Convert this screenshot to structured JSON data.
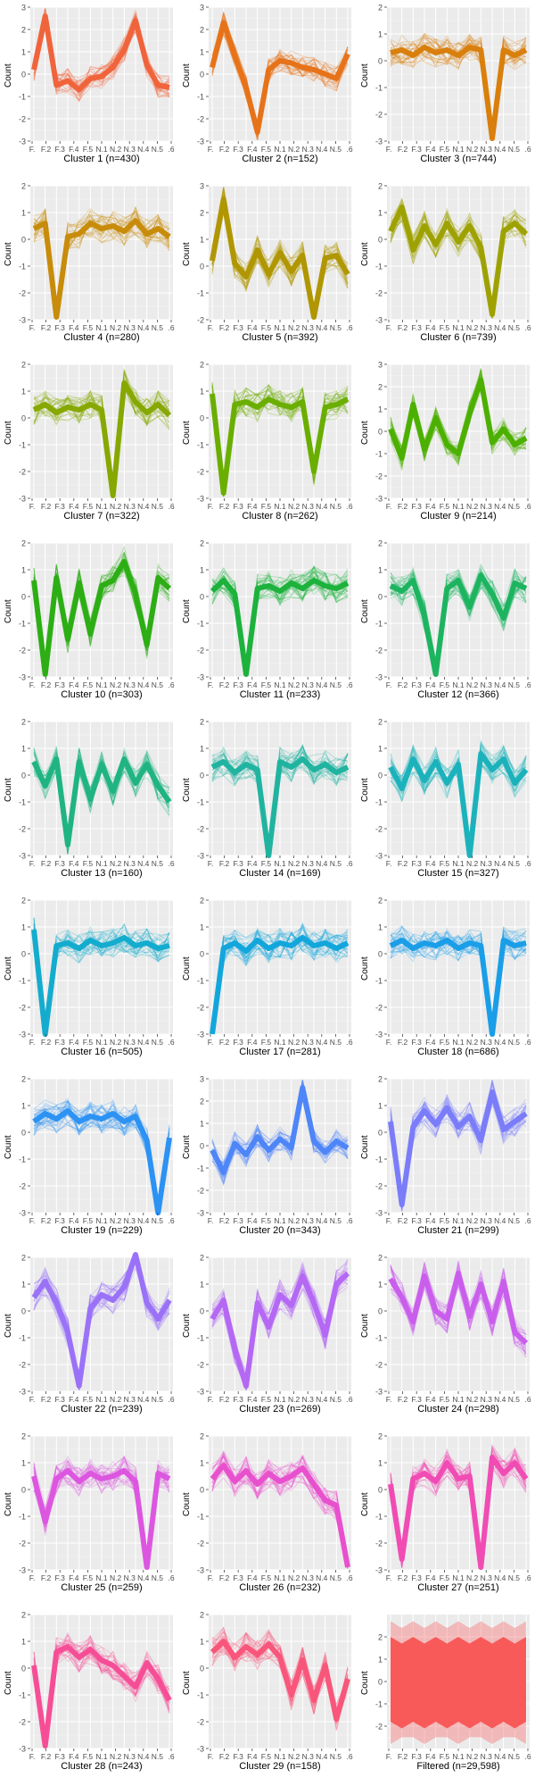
{
  "chart_data": [
    {
      "type": "line",
      "title": "Cluster 1 (n=430)",
      "ylabel": "Count",
      "ylim": [
        -3,
        3
      ],
      "yticks": [
        3,
        2,
        1,
        0,
        -1,
        -2,
        -3
      ],
      "x_ticklabels": [
        "F.",
        "F.2",
        "F.3",
        "F.4",
        "F.5",
        "N.1",
        "N.2",
        "N.3",
        "N.4",
        "N.5",
        ".6"
      ],
      "color": "#F0643C",
      "profile": [
        0.2,
        2.6,
        -0.5,
        -0.3,
        -0.7,
        -0.2,
        -0.1,
        0.3,
        1.1,
        2.4,
        0.4,
        -0.5,
        -0.6
      ]
    },
    {
      "type": "line",
      "title": "Cluster 2 (n=152)",
      "ylabel": "Count",
      "ylim": [
        -3,
        3
      ],
      "yticks": [
        3,
        2,
        1,
        0,
        -1,
        -2,
        -3
      ],
      "x_ticklabels": [
        "F.",
        "F.2",
        "F.3",
        "F.4",
        "F.5",
        "N.1",
        "N.2",
        "N.3",
        "N.4",
        "N.5",
        ".6"
      ],
      "color": "#E6731A",
      "profile": [
        0.3,
        2.3,
        0.8,
        -0.6,
        -2.6,
        0.2,
        0.6,
        0.5,
        0.3,
        0.2,
        0.0,
        -0.2,
        0.9
      ]
    },
    {
      "type": "line",
      "title": "Cluster 3 (n=744)",
      "ylabel": "Count",
      "ylim": [
        -3,
        2
      ],
      "yticks": [
        2,
        1,
        0,
        -1,
        -2,
        -3
      ],
      "x_ticklabels": [
        "F.",
        "F.2",
        "F.3",
        "F.4",
        "F.5",
        "N.1",
        "N.2",
        "N.3",
        "N.4",
        "N.5",
        ".6"
      ],
      "color": "#D97F0C",
      "profile": [
        0.3,
        0.4,
        0.2,
        0.5,
        0.3,
        0.4,
        0.2,
        0.5,
        0.4,
        -2.9,
        0.4,
        0.2,
        0.4
      ]
    },
    {
      "type": "line",
      "title": "Cluster 4 (n=280)",
      "ylabel": "Count",
      "ylim": [
        -3,
        2
      ],
      "yticks": [
        2,
        1,
        0,
        -1,
        -2,
        -3
      ],
      "x_ticklabels": [
        "F.",
        "F.2",
        "F.3",
        "F.4",
        "F.5",
        "N.1",
        "N.2",
        "N.3",
        "N.4",
        "N.5",
        ".6"
      ],
      "color": "#C88C0A",
      "profile": [
        0.4,
        0.6,
        -2.9,
        0.1,
        0.2,
        0.6,
        0.4,
        0.5,
        0.3,
        0.7,
        0.2,
        0.4,
        0.1
      ]
    },
    {
      "type": "line",
      "title": "Cluster 5 (n=392)",
      "ylabel": "Count",
      "ylim": [
        -2,
        3
      ],
      "yticks": [
        3,
        2,
        1,
        0,
        -1,
        -2
      ],
      "x_ticklabels": [
        "F.",
        "F.2",
        "F.3",
        "F.4",
        "F.5",
        "N.1",
        "N.2",
        "N.3",
        "N.4",
        "N.5",
        ".6"
      ],
      "color": "#B09600",
      "profile": [
        0.2,
        2.5,
        0.1,
        -0.4,
        0.6,
        -0.3,
        0.5,
        -0.2,
        0.4,
        -1.9,
        0.3,
        0.4,
        -0.3
      ]
    },
    {
      "type": "line",
      "title": "Cluster 6 (n=739)",
      "ylabel": "Count",
      "ylim": [
        -3,
        2
      ],
      "yticks": [
        2,
        1,
        0,
        -1,
        -2,
        -3
      ],
      "x_ticklabels": [
        "F.",
        "F.2",
        "F.3",
        "F.4",
        "F.5",
        "N.1",
        "N.2",
        "N.3",
        "N.4",
        "N.5",
        ".6"
      ],
      "color": "#9EA200",
      "profile": [
        0.3,
        1.2,
        -0.4,
        0.5,
        -0.2,
        0.6,
        -0.1,
        0.5,
        -0.3,
        -2.8,
        0.3,
        0.6,
        0.2
      ]
    },
    {
      "type": "line",
      "title": "Cluster 7 (n=322)",
      "ylabel": "Count",
      "ylim": [
        -3,
        2
      ],
      "yticks": [
        2,
        1,
        0,
        -1,
        -2,
        -3
      ],
      "x_ticklabels": [
        "F.",
        "F.2",
        "F.3",
        "F.4",
        "F.5",
        "N.1",
        "N.2",
        "N.3",
        "N.4",
        "N.5",
        ".6"
      ],
      "color": "#86A800",
      "profile": [
        0.3,
        0.5,
        0.2,
        0.4,
        0.3,
        0.5,
        0.3,
        -2.9,
        1.3,
        0.6,
        0.2,
        0.5,
        0.1
      ]
    },
    {
      "type": "line",
      "title": "Cluster 8 (n=262)",
      "ylabel": "Count",
      "ylim": [
        -3,
        2
      ],
      "yticks": [
        2,
        1,
        0,
        -1,
        -2,
        -3
      ],
      "x_ticklabels": [
        "F.",
        "F.2",
        "F.3",
        "F.4",
        "F.5",
        "N.1",
        "N.2",
        "N.3",
        "N.4",
        "N.5",
        ".6"
      ],
      "color": "#6AAE00",
      "profile": [
        0.9,
        -2.8,
        0.5,
        0.6,
        0.4,
        0.7,
        0.5,
        0.4,
        0.6,
        -2.0,
        0.4,
        0.5,
        0.7
      ]
    },
    {
      "type": "line",
      "title": "Cluster 9 (n=214)",
      "ylabel": "Count",
      "ylim": [
        -3,
        3
      ],
      "yticks": [
        3,
        2,
        1,
        0,
        -1,
        -2,
        -3
      ],
      "x_ticklabels": [
        "F.",
        "F.2",
        "F.3",
        "F.4",
        "F.5",
        "N.1",
        "N.2",
        "N.3",
        "N.4",
        "N.5",
        ".6"
      ],
      "color": "#4CB000",
      "profile": [
        0.1,
        -1.2,
        1.2,
        -0.8,
        0.6,
        -0.6,
        -1.0,
        0.8,
        2.3,
        -0.5,
        0.1,
        -0.6,
        -0.3
      ]
    },
    {
      "type": "line",
      "title": "Cluster 10 (n=303)",
      "ylabel": "Count",
      "ylim": [
        -3,
        2
      ],
      "yticks": [
        2,
        1,
        0,
        -1,
        -2,
        -3
      ],
      "x_ticklabels": [
        "F.",
        "F.2",
        "F.3",
        "F.4",
        "F.5",
        "N.1",
        "N.2",
        "N.3",
        "N.4",
        "N.5",
        ".6"
      ],
      "color": "#2CAE14",
      "profile": [
        0.6,
        -2.9,
        0.7,
        -1.6,
        0.5,
        -1.4,
        0.4,
        0.6,
        1.3,
        0.1,
        -1.8,
        0.7,
        0.3
      ]
    },
    {
      "type": "line",
      "title": "Cluster 11 (n=233)",
      "ylabel": "Count",
      "ylim": [
        -3,
        2
      ],
      "yticks": [
        2,
        1,
        0,
        -1,
        -2,
        -3
      ],
      "x_ticklabels": [
        "F.",
        "F.2",
        "F.3",
        "F.4",
        "F.5",
        "N.1",
        "N.2",
        "N.3",
        "N.4",
        "N.5",
        ".6"
      ],
      "color": "#1CB23C",
      "profile": [
        0.2,
        0.6,
        0.1,
        -2.9,
        0.3,
        0.4,
        0.2,
        0.5,
        0.3,
        0.6,
        0.4,
        0.3,
        0.5
      ]
    },
    {
      "type": "line",
      "title": "Cluster 12 (n=366)",
      "ylabel": "Count",
      "ylim": [
        -3,
        2
      ],
      "yticks": [
        2,
        1,
        0,
        -1,
        -2,
        -3
      ],
      "x_ticklabels": [
        "F.",
        "F.2",
        "F.3",
        "F.4",
        "F.5",
        "N.1",
        "N.2",
        "N.3",
        "N.4",
        "N.5",
        ".6"
      ],
      "color": "#1DB460",
      "profile": [
        0.4,
        0.2,
        0.6,
        -0.7,
        -2.9,
        0.3,
        0.6,
        -0.4,
        0.8,
        0.1,
        -0.8,
        0.5,
        0.3
      ]
    },
    {
      "type": "line",
      "title": "Cluster 13 (n=160)",
      "ylabel": "Count",
      "ylim": [
        -3,
        2
      ],
      "yticks": [
        2,
        1,
        0,
        -1,
        -2,
        -3
      ],
      "x_ticklabels": [
        "F.",
        "F.2",
        "F.3",
        "F.4",
        "F.5",
        "N.1",
        "N.2",
        "N.3",
        "N.4",
        "N.5",
        ".6"
      ],
      "color": "#1FB482",
      "profile": [
        0.5,
        -0.4,
        0.6,
        -2.6,
        0.5,
        -0.9,
        0.4,
        -0.6,
        0.6,
        -0.3,
        0.4,
        -0.4,
        -1.0
      ]
    },
    {
      "type": "line",
      "title": "Cluster 14 (n=169)",
      "ylabel": "Count",
      "ylim": [
        -3,
        2
      ],
      "yticks": [
        2,
        1,
        0,
        -1,
        -2,
        -3
      ],
      "x_ticklabels": [
        "F.",
        "F.2",
        "F.3",
        "F.4",
        "F.5",
        "N.1",
        "N.2",
        "N.3",
        "N.4",
        "N.5",
        ".6"
      ],
      "color": "#20B4A0",
      "profile": [
        0.3,
        0.5,
        0.1,
        0.4,
        0.2,
        -3.0,
        0.5,
        0.3,
        0.6,
        0.2,
        0.4,
        0.1,
        0.3
      ]
    },
    {
      "type": "line",
      "title": "Cluster 15 (n=327)",
      "ylabel": "Count",
      "ylim": [
        -3,
        2
      ],
      "yticks": [
        2,
        1,
        0,
        -1,
        -2,
        -3
      ],
      "x_ticklabels": [
        "F.",
        "F.2",
        "F.3",
        "F.4",
        "F.5",
        "N.1",
        "N.2",
        "N.3",
        "N.4",
        "N.5",
        ".6"
      ],
      "color": "#1CB2BC",
      "profile": [
        0.3,
        -0.5,
        0.6,
        -0.2,
        0.5,
        -0.3,
        0.4,
        -3.0,
        0.8,
        0.2,
        0.6,
        -0.3,
        0.2
      ]
    },
    {
      "type": "line",
      "title": "Cluster 16 (n=505)",
      "ylabel": "Count",
      "ylim": [
        -3,
        2
      ],
      "yticks": [
        2,
        1,
        0,
        -1,
        -2,
        -3
      ],
      "x_ticklabels": [
        "F.",
        "F.2",
        "F.3",
        "F.4",
        "F.5",
        "N.1",
        "N.2",
        "N.3",
        "N.4",
        "N.5",
        ".6"
      ],
      "color": "#14ACCE",
      "profile": [
        0.9,
        -3.0,
        0.3,
        0.4,
        0.2,
        0.5,
        0.3,
        0.4,
        0.6,
        0.3,
        0.4,
        0.2,
        0.3
      ]
    },
    {
      "type": "line",
      "title": "Cluster 17 (n=281)",
      "ylabel": "Count",
      "ylim": [
        -3,
        2
      ],
      "yticks": [
        2,
        1,
        0,
        -1,
        -2,
        -3
      ],
      "x_ticklabels": [
        "F.",
        "F.2",
        "F.3",
        "F.4",
        "F.5",
        "N.1",
        "N.2",
        "N.3",
        "N.4",
        "N.5",
        ".6"
      ],
      "color": "#12A6DC",
      "profile": [
        -3.0,
        0.2,
        0.4,
        0.1,
        0.5,
        0.2,
        0.4,
        0.3,
        0.6,
        0.3,
        0.4,
        0.2,
        0.4
      ]
    },
    {
      "type": "line",
      "title": "Cluster 18 (n=686)",
      "ylabel": "Count",
      "ylim": [
        -3,
        2
      ],
      "yticks": [
        2,
        1,
        0,
        -1,
        -2,
        -3
      ],
      "x_ticklabels": [
        "F.",
        "F.2",
        "F.3",
        "F.4",
        "F.5",
        "N.1",
        "N.2",
        "N.3",
        "N.4",
        "N.5",
        ".6"
      ],
      "color": "#1A9EE8",
      "profile": [
        0.3,
        0.5,
        0.2,
        0.4,
        0.3,
        0.5,
        0.2,
        0.4,
        0.3,
        -3.0,
        0.5,
        0.3,
        0.4
      ]
    },
    {
      "type": "line",
      "title": "Cluster 19 (n=229)",
      "ylabel": "Count",
      "ylim": [
        -3,
        2
      ],
      "yticks": [
        2,
        1,
        0,
        -1,
        -2,
        -3
      ],
      "x_ticklabels": [
        "F.",
        "F.2",
        "F.3",
        "F.4",
        "F.5",
        "N.1",
        "N.2",
        "N.3",
        "N.4",
        "N.5",
        ".6"
      ],
      "color": "#2C92F4",
      "profile": [
        0.4,
        0.7,
        0.5,
        0.8,
        0.4,
        0.6,
        0.5,
        0.7,
        0.4,
        0.6,
        -0.3,
        -3.0,
        -0.2
      ]
    },
    {
      "type": "line",
      "title": "Cluster 20 (n=343)",
      "ylabel": "Count",
      "ylim": [
        -3,
        3
      ],
      "yticks": [
        3,
        2,
        1,
        0,
        -1,
        -2,
        -3
      ],
      "x_ticklabels": [
        "F.",
        "F.2",
        "F.3",
        "F.4",
        "F.5",
        "N.1",
        "N.2",
        "N.3",
        "N.4",
        "N.5",
        ".6"
      ],
      "color": "#4E86F8",
      "profile": [
        -0.2,
        -1.2,
        0.1,
        -0.4,
        0.4,
        -0.2,
        0.3,
        -0.1,
        2.6,
        0.2,
        -0.3,
        0.2,
        -0.1
      ]
    },
    {
      "type": "line",
      "title": "Cluster 21 (n=299)",
      "ylabel": "Count",
      "ylim": [
        -3,
        2
      ],
      "yticks": [
        2,
        1,
        0,
        -1,
        -2,
        -3
      ],
      "x_ticklabels": [
        "F.",
        "F.2",
        "F.3",
        "F.4",
        "F.5",
        "N.1",
        "N.2",
        "N.3",
        "N.4",
        "N.5",
        ".6"
      ],
      "color": "#7A7CFA",
      "profile": [
        0.4,
        -2.7,
        0.2,
        0.8,
        0.3,
        0.9,
        0.2,
        0.6,
        -0.3,
        1.5,
        0.1,
        0.4,
        0.7
      ]
    },
    {
      "type": "line",
      "title": "Cluster 22 (n=239)",
      "ylabel": "Count",
      "ylim": [
        -3,
        2
      ],
      "yticks": [
        2,
        1,
        0,
        -1,
        -2,
        -3
      ],
      "x_ticklabels": [
        "F.",
        "F.2",
        "F.3",
        "F.4",
        "F.5",
        "N.1",
        "N.2",
        "N.3",
        "N.4",
        "N.5",
        ".6"
      ],
      "color": "#9A72F8",
      "profile": [
        0.5,
        1.1,
        0.3,
        -0.8,
        -2.8,
        0.1,
        0.6,
        0.4,
        0.9,
        2.1,
        0.3,
        -0.3,
        0.4
      ]
    },
    {
      "type": "line",
      "title": "Cluster 23 (n=269)",
      "ylabel": "Count",
      "ylim": [
        -3,
        2
      ],
      "yticks": [
        2,
        1,
        0,
        -1,
        -2,
        -3
      ],
      "x_ticklabels": [
        "F.",
        "F.2",
        "F.3",
        "F.4",
        "F.5",
        "N.1",
        "N.2",
        "N.3",
        "N.4",
        "N.5",
        ".6"
      ],
      "color": "#B468F4",
      "profile": [
        -0.3,
        0.4,
        -1.4,
        -2.8,
        0.3,
        -0.6,
        0.6,
        0.2,
        1.3,
        0.3,
        -0.9,
        1.0,
        1.4
      ]
    },
    {
      "type": "line",
      "title": "Cluster 24 (n=298)",
      "ylabel": "Count",
      "ylim": [
        -3,
        2
      ],
      "yticks": [
        2,
        1,
        0,
        -1,
        -2,
        -3
      ],
      "x_ticklabels": [
        "F.",
        "F.2",
        "F.3",
        "F.4",
        "F.5",
        "N.1",
        "N.2",
        "N.3",
        "N.4",
        "N.5",
        ".6"
      ],
      "color": "#CA5EEC",
      "profile": [
        1.2,
        0.5,
        -0.4,
        1.3,
        0.0,
        -0.3,
        1.4,
        -0.2,
        1.0,
        -0.4,
        1.1,
        -0.8,
        -1.2
      ]
    },
    {
      "type": "line",
      "title": "Cluster 25 (n=259)",
      "ylabel": "Count",
      "ylim": [
        -3,
        2
      ],
      "yticks": [
        2,
        1,
        0,
        -1,
        -2,
        -3
      ],
      "x_ticklabels": [
        "F.",
        "F.2",
        "F.3",
        "F.4",
        "F.5",
        "N.1",
        "N.2",
        "N.3",
        "N.4",
        "N.5",
        ".6"
      ],
      "color": "#DC56E0",
      "profile": [
        0.5,
        -1.2,
        0.4,
        0.7,
        0.3,
        0.6,
        0.4,
        0.5,
        0.7,
        0.3,
        -2.9,
        0.6,
        0.4
      ]
    },
    {
      "type": "line",
      "title": "Cluster 26 (n=232)",
      "ylabel": "Count",
      "ylim": [
        -3,
        2
      ],
      "yticks": [
        2,
        1,
        0,
        -1,
        -2,
        -3
      ],
      "x_ticklabels": [
        "F.",
        "F.2",
        "F.3",
        "F.4",
        "F.5",
        "N.1",
        "N.2",
        "N.3",
        "N.4",
        "N.5",
        ".6"
      ],
      "color": "#E850CE",
      "profile": [
        0.4,
        0.9,
        0.3,
        0.7,
        0.2,
        0.6,
        0.3,
        0.5,
        0.8,
        0.2,
        -0.4,
        -0.6,
        -2.9
      ]
    },
    {
      "type": "line",
      "title": "Cluster 27 (n=251)",
      "ylabel": "Count",
      "ylim": [
        -3,
        2
      ],
      "yticks": [
        2,
        1,
        0,
        -1,
        -2,
        -3
      ],
      "x_ticklabels": [
        "F.",
        "F.2",
        "F.3",
        "F.4",
        "F.5",
        "N.1",
        "N.2",
        "N.3",
        "N.4",
        "N.5",
        ".6"
      ],
      "color": "#F04CB4",
      "profile": [
        0.2,
        -2.6,
        0.4,
        0.6,
        0.3,
        1.0,
        0.4,
        0.5,
        -2.9,
        1.2,
        0.6,
        1.0,
        0.4
      ]
    },
    {
      "type": "line",
      "title": "Cluster 28 (n=243)",
      "ylabel": "Count",
      "ylim": [
        -3,
        2
      ],
      "yticks": [
        2,
        1,
        0,
        -1,
        -2,
        -3
      ],
      "x_ticklabels": [
        "F.",
        "F.2",
        "F.3",
        "F.4",
        "F.5",
        "N.1",
        "N.2",
        "N.3",
        "N.4",
        "N.5",
        ".6"
      ],
      "color": "#F64E96",
      "profile": [
        0.1,
        -2.9,
        0.6,
        0.8,
        0.4,
        0.7,
        0.3,
        0.1,
        -0.3,
        -0.7,
        0.2,
        -0.4,
        -1.2
      ]
    },
    {
      "type": "line",
      "title": "Cluster 29 (n=158)",
      "ylabel": "Count",
      "ylim": [
        -3,
        2
      ],
      "yticks": [
        2,
        1,
        0,
        -1,
        -2,
        -3
      ],
      "x_ticklabels": [
        "F.",
        "F.2",
        "F.3",
        "F.4",
        "F.5",
        "N.1",
        "N.2",
        "N.3",
        "N.4",
        "N.5",
        ".6"
      ],
      "color": "#F8567A",
      "profile": [
        0.6,
        1.0,
        0.4,
        0.8,
        0.5,
        0.9,
        0.4,
        -1.0,
        0.3,
        -1.2,
        0.1,
        -1.9,
        -0.4
      ]
    },
    {
      "type": "area",
      "title": "Filtered (n=29,598)",
      "ylabel": "Count",
      "ylim": [
        -3,
        3
      ],
      "yticks": [
        2,
        1,
        0,
        -1,
        -2
      ],
      "x_ticklabels": [
        "F.",
        "F.2",
        "F.3",
        "F.4",
        "F.5",
        "N.1",
        "N.2",
        "N.3",
        "N.4",
        "N.5",
        ".6"
      ],
      "color": "#F85A5A",
      "profile": [
        0,
        0,
        0,
        0,
        0,
        0,
        0,
        0,
        0,
        0,
        0,
        0,
        0
      ]
    }
  ]
}
